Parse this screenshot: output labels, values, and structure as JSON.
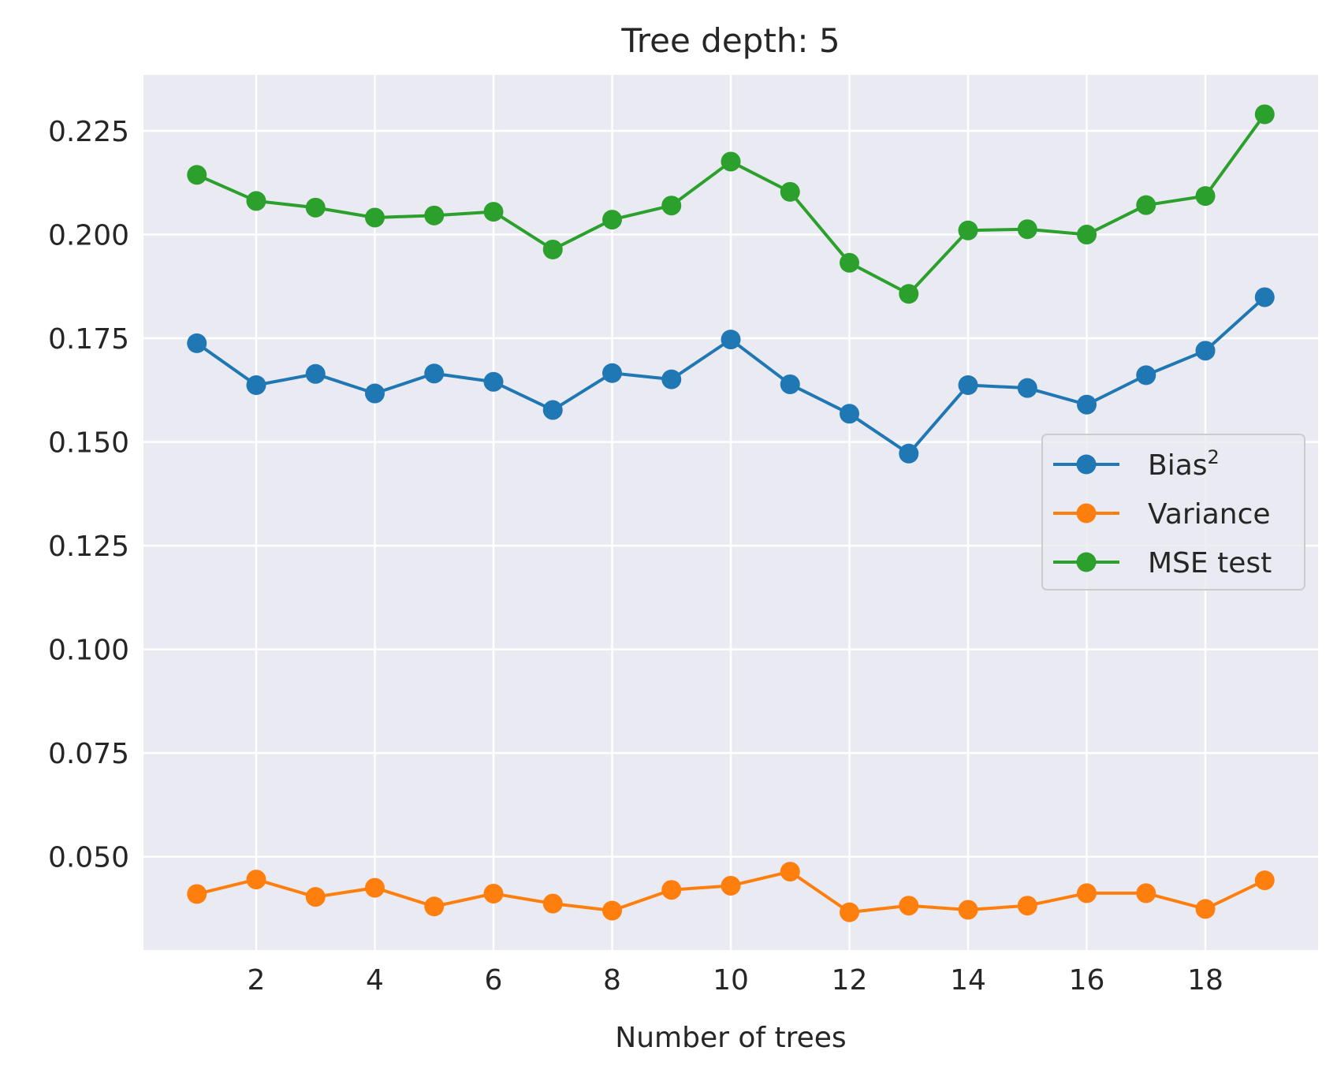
{
  "chart_data": {
    "type": "line",
    "title": "Tree depth: 5",
    "xlabel": "Number of trees",
    "ylabel": "",
    "x": [
      1,
      2,
      3,
      4,
      5,
      6,
      7,
      8,
      9,
      10,
      11,
      12,
      13,
      14,
      15,
      16,
      17,
      18,
      19
    ],
    "xticks": [
      2,
      4,
      6,
      8,
      10,
      12,
      14,
      16,
      18
    ],
    "xtick_labels": [
      "2",
      "4",
      "6",
      "8",
      "10",
      "12",
      "14",
      "16",
      "18"
    ],
    "yticks": [
      0.05,
      0.075,
      0.1,
      0.125,
      0.15,
      0.175,
      0.2,
      0.225
    ],
    "ytick_labels": [
      "0.050",
      "0.075",
      "0.100",
      "0.125",
      "0.150",
      "0.175",
      "0.200",
      "0.225"
    ],
    "xlim": [
      0.1,
      19.9
    ],
    "ylim": [
      0.0275,
      0.2385
    ],
    "grid": true,
    "legend_position": "center-right",
    "background_color": "#eaeaf2",
    "grid_color": "#ffffff",
    "series": [
      {
        "name": "Bias",
        "name_superscript": "2",
        "color": "#1f77b4",
        "values": [
          0.1738,
          0.1637,
          0.1664,
          0.1617,
          0.1665,
          0.1645,
          0.1577,
          0.1666,
          0.1651,
          0.1747,
          0.1639,
          0.1568,
          0.1472,
          0.1637,
          0.163,
          0.159,
          0.1661,
          0.172,
          0.1849
        ]
      },
      {
        "name": "Variance",
        "color": "#ff7f0e",
        "values": [
          0.041,
          0.0445,
          0.0403,
          0.0425,
          0.038,
          0.0411,
          0.0387,
          0.037,
          0.042,
          0.043,
          0.0464,
          0.0366,
          0.0382,
          0.0372,
          0.0382,
          0.0412,
          0.0412,
          0.0374,
          0.0443
        ]
      },
      {
        "name": "MSE test",
        "color": "#2ca02c",
        "values": [
          0.2144,
          0.2081,
          0.2065,
          0.2041,
          0.2046,
          0.2055,
          0.1964,
          0.2036,
          0.207,
          0.2176,
          0.2103,
          0.1932,
          0.1857,
          0.201,
          0.2013,
          0.2,
          0.2071,
          0.2093,
          0.229
        ]
      }
    ]
  }
}
